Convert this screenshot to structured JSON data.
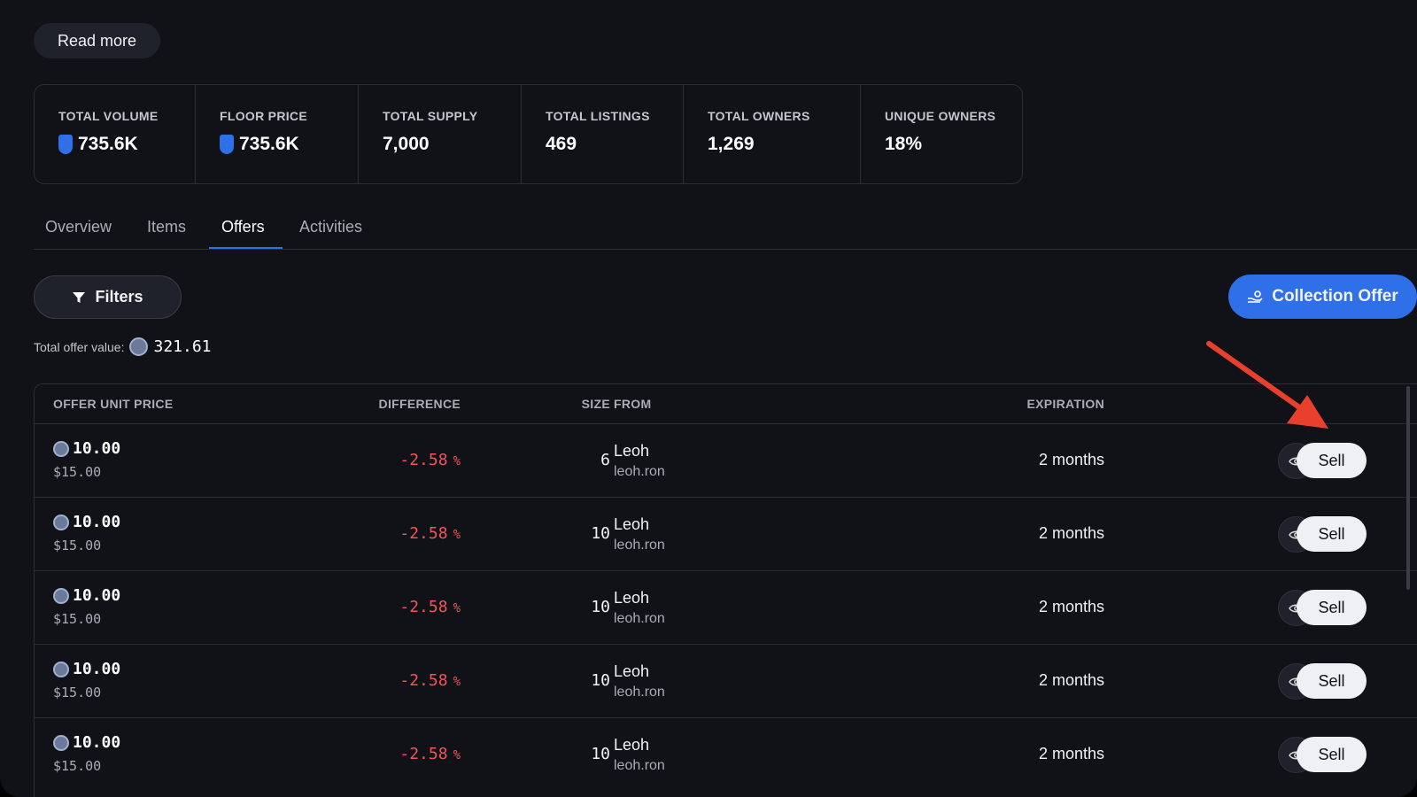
{
  "read_more": "Read more",
  "stats": [
    {
      "label": "TOTAL VOLUME",
      "value": "735.6K"
    },
    {
      "label": "FLOOR PRICE",
      "value": "735.6K"
    },
    {
      "label": "TOTAL SUPPLY",
      "value": "7,000"
    },
    {
      "label": "TOTAL LISTINGS",
      "value": "469"
    },
    {
      "label": "TOTAL OWNERS",
      "value": "1,269"
    },
    {
      "label": "UNIQUE OWNERS",
      "value": "18%"
    }
  ],
  "tabs": [
    "Overview",
    "Items",
    "Offers",
    "Activities"
  ],
  "active_tab": 2,
  "filters": "Filters",
  "collection_offer": "Collection Offer",
  "total_offer": {
    "label": "Total offer value:",
    "value": "321.61"
  },
  "table": {
    "headers": [
      "OFFER UNIT PRICE",
      "DIFFERENCE",
      "SIZE",
      "FROM",
      "EXPIRATION"
    ],
    "rows": [
      {
        "price": "10.00",
        "usd": "$15.00",
        "difference": "-2.58",
        "unit": "%",
        "size": "6",
        "from": "Leoh",
        "handle": "leoh.ron",
        "expiration": "2 months",
        "action": "Sell"
      },
      {
        "price": "10.00",
        "usd": "$15.00",
        "difference": "-2.58",
        "unit": "%",
        "size": "10",
        "from": "Leoh",
        "handle": "leoh.ron",
        "expiration": "2 months",
        "action": "Sell"
      },
      {
        "price": "10.00",
        "usd": "$15.00",
        "difference": "-2.58",
        "unit": "%",
        "size": "10",
        "from": "Leoh",
        "handle": "leoh.ron",
        "expiration": "2 months",
        "action": "Sell"
      },
      {
        "price": "10.00",
        "usd": "$15.00",
        "difference": "-2.58",
        "unit": "%",
        "size": "10",
        "from": "Leoh",
        "handle": "leoh.ron",
        "expiration": "2 months",
        "action": "Sell"
      },
      {
        "price": "10.00",
        "usd": "$15.00",
        "difference": "-2.58",
        "unit": "%",
        "size": "10",
        "from": "Leoh",
        "handle": "leoh.ron",
        "expiration": "2 months",
        "action": "Sell"
      }
    ]
  }
}
